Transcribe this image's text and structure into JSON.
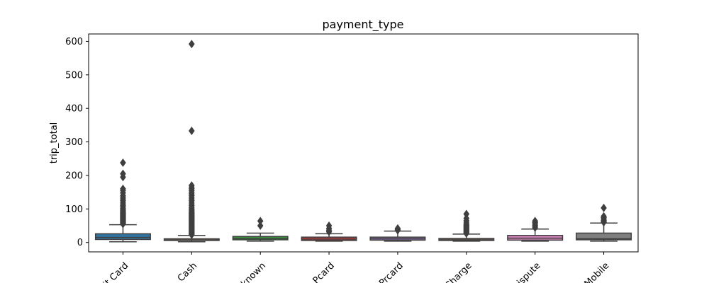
{
  "chart_data": {
    "type": "box",
    "title": "payment_type",
    "xlabel": "",
    "ylabel": "trip_total",
    "ylim": [
      -28,
      622
    ],
    "yticks": [
      0,
      100,
      200,
      300,
      400,
      500,
      600
    ],
    "grid": false,
    "categories": [
      "Credit Card",
      "Cash",
      "Unknown",
      "Pcard",
      "Prcard",
      "No Charge",
      "Dispute",
      "Mobile"
    ],
    "tick_labels_visible": [
      "it Card",
      "Cash",
      "known",
      "Pcard",
      "Prcard",
      "Charge",
      "ispute",
      "Mobile"
    ],
    "colors": [
      "#3274a1",
      "#e1812c",
      "#3a923a",
      "#c03d3e",
      "#9372b2",
      "#845b53",
      "#d684bd",
      "#7f7f7f"
    ],
    "series": [
      {
        "category": "Credit Card",
        "whisker_low": 2,
        "q1": 9,
        "median": 15,
        "q3": 26,
        "whisker_high": 53,
        "outliers": [
          55,
          58,
          60,
          62,
          64,
          66,
          68,
          70,
          72,
          74,
          76,
          78,
          80,
          82,
          84,
          86,
          88,
          90,
          92,
          95,
          98,
          102,
          106,
          110,
          115,
          120,
          125,
          130,
          135,
          140,
          148,
          155,
          160,
          195,
          205,
          238
        ]
      },
      {
        "category": "Cash",
        "whisker_low": 2,
        "q1": 6,
        "median": 8,
        "q3": 11,
        "whisker_high": 21,
        "outliers": [
          23,
          25,
          27,
          29,
          31,
          33,
          35,
          37,
          39,
          41,
          43,
          45,
          47,
          49,
          51,
          53,
          55,
          57,
          59,
          61,
          63,
          65,
          67,
          69,
          71,
          73,
          75,
          77,
          79,
          81,
          83,
          85,
          87,
          89,
          92,
          95,
          98,
          101,
          105,
          110,
          115,
          120,
          125,
          130,
          135,
          140,
          145,
          150,
          155,
          160,
          165,
          170,
          333,
          592
        ]
      },
      {
        "category": "Unknown",
        "whisker_low": 4,
        "q1": 8,
        "median": 12,
        "q3": 18,
        "whisker_high": 28,
        "outliers": [
          50,
          64
        ]
      },
      {
        "category": "Pcard",
        "whisker_low": 4,
        "q1": 6,
        "median": 10,
        "q3": 16,
        "whisker_high": 26,
        "outliers": [
          32,
          36,
          42,
          50
        ]
      },
      {
        "category": "Prcard",
        "whisker_low": 4,
        "q1": 7,
        "median": 11,
        "q3": 16,
        "whisker_high": 34,
        "outliers": [
          36,
          39,
          42
        ]
      },
      {
        "category": "No Charge",
        "whisker_low": 4,
        "q1": 6,
        "median": 8,
        "q3": 12,
        "whisker_high": 25,
        "outliers": [
          27,
          29,
          31,
          33,
          35,
          37,
          39,
          41,
          43,
          45,
          47,
          49,
          51,
          53,
          56,
          60,
          65,
          72,
          85
        ]
      },
      {
        "category": "Dispute",
        "whisker_low": 4,
        "q1": 7,
        "median": 13,
        "q3": 21,
        "whisker_high": 40,
        "outliers": [
          44,
          48,
          52,
          56,
          60,
          64
        ]
      },
      {
        "category": "Mobile",
        "whisker_low": 4,
        "q1": 8,
        "median": 11,
        "q3": 28,
        "whisker_high": 58,
        "outliers": [
          60,
          63,
          66,
          70,
          74,
          78,
          103
        ]
      }
    ]
  }
}
